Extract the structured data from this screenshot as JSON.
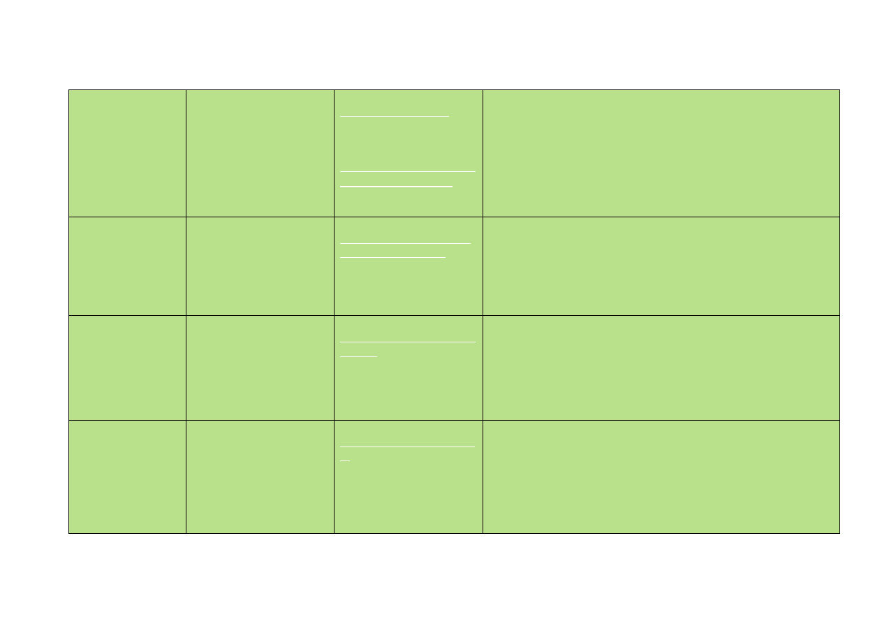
{
  "table": {
    "fill_color": "#b9e08b",
    "border_color": "#000000",
    "row_count": 4,
    "column_count": 4
  }
}
